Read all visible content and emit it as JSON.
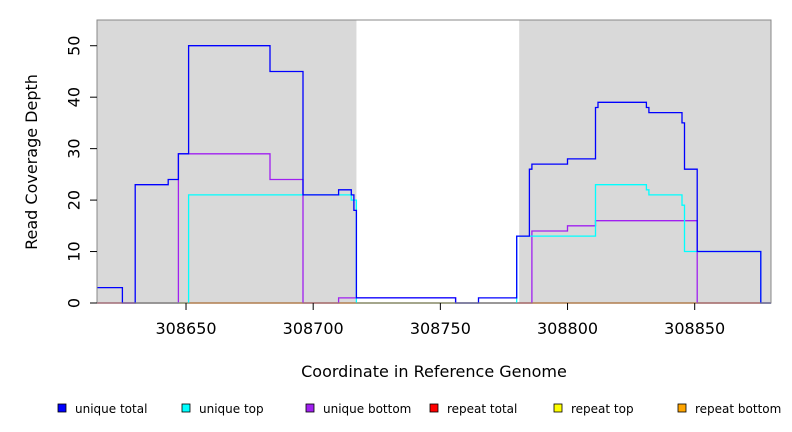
{
  "chart_data": {
    "type": "line",
    "title": "",
    "xlabel": "Coordinate in Reference Genome",
    "ylabel": "Read Coverage Depth",
    "xlim": [
      308615,
      308880
    ],
    "ylim": [
      0,
      55
    ],
    "x_ticks": [
      308650,
      308700,
      308750,
      308800,
      308850
    ],
    "y_ticks": [
      0,
      10,
      20,
      30,
      40,
      50
    ],
    "shaded_regions": [
      [
        308615,
        308717
      ],
      [
        308781,
        308880
      ]
    ],
    "shading_color": "#d9d9d9",
    "grid": false,
    "legend_position": "bottom",
    "series": [
      {
        "name": "unique total",
        "color": "#0000ff",
        "x": [
          308615,
          308625,
          308625,
          308630,
          308630,
          308643,
          308643,
          308647,
          308647,
          308651,
          308651,
          308683,
          308683,
          308696,
          308696,
          308710,
          308710,
          308715,
          308715,
          308716,
          308716,
          308717,
          308717,
          308756,
          308756,
          308765,
          308765,
          308780,
          308780,
          308785,
          308785,
          308786,
          308786,
          308800,
          308800,
          308811,
          308811,
          308812,
          308812,
          308831,
          308831,
          308832,
          308832,
          308845,
          308845,
          308846,
          308846,
          308851,
          308851,
          308876,
          308876,
          308880
        ],
        "y": [
          3,
          3,
          0,
          0,
          23,
          23,
          24,
          24,
          29,
          29,
          50,
          50,
          45,
          45,
          21,
          21,
          22,
          22,
          21,
          21,
          18,
          18,
          1,
          1,
          0,
          0,
          1,
          1,
          13,
          13,
          26,
          26,
          27,
          27,
          28,
          28,
          38,
          38,
          39,
          39,
          38,
          38,
          37,
          37,
          35,
          35,
          26,
          26,
          10,
          10,
          0,
          0
        ]
      },
      {
        "name": "unique top",
        "color": "#00ffff",
        "x": [
          308615,
          308651,
          308651,
          308715,
          308715,
          308717,
          308717,
          308780,
          308780,
          308786,
          308786,
          308811,
          308811,
          308831,
          308831,
          308832,
          308832,
          308845,
          308845,
          308846,
          308846,
          308851,
          308851,
          308876,
          308876,
          308880
        ],
        "y": [
          0,
          0,
          21,
          21,
          20,
          20,
          0,
          0,
          13,
          13,
          13,
          13,
          23,
          23,
          22,
          22,
          21,
          21,
          19,
          19,
          10,
          10,
          10,
          10,
          0,
          0
        ],
        "draw_from": 308630
      },
      {
        "name": "unique bottom",
        "color": "#a020f0",
        "x": [
          308615,
          308630,
          308630,
          308647,
          308647,
          308683,
          308683,
          308696,
          308696,
          308710,
          308710,
          308717,
          308717,
          308756,
          308756,
          308765,
          308765,
          308786,
          308786,
          308800,
          308800,
          308811,
          308811,
          308851,
          308851,
          308880
        ],
        "y": [
          0,
          0,
          0,
          0,
          29,
          29,
          24,
          24,
          0,
          0,
          1,
          1,
          1,
          1,
          0,
          0,
          0,
          0,
          14,
          14,
          15,
          15,
          16,
          16,
          0,
          0
        ]
      },
      {
        "name": "repeat total",
        "color": "#ff0000",
        "x": [
          308615,
          308880
        ],
        "y": [
          0,
          0
        ]
      },
      {
        "name": "repeat top",
        "color": "#ffff00",
        "x": [
          308615,
          308880
        ],
        "y": [
          0,
          0
        ]
      },
      {
        "name": "repeat bottom",
        "color": "#ffa500",
        "x": [
          308630,
          308880
        ],
        "y": [
          0,
          0
        ]
      }
    ]
  }
}
